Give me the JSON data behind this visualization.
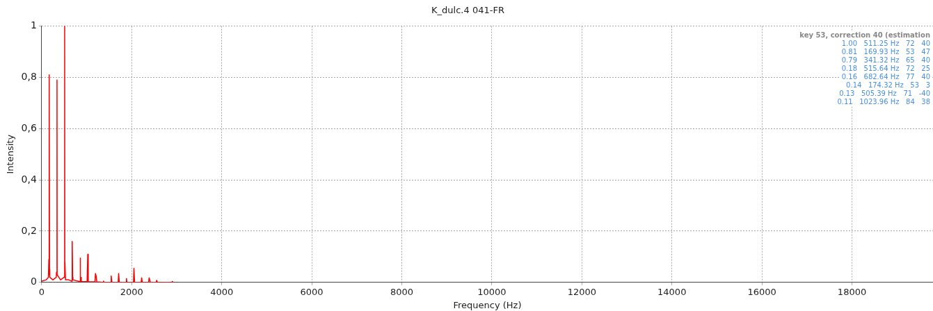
{
  "chart_data": {
    "type": "line",
    "title": "K_dulc.4 041-FR",
    "xlabel": "Frequency (Hz)",
    "ylabel": "Intensity",
    "xlim": [
      0,
      19800
    ],
    "xticks": [
      0,
      2000,
      4000,
      6000,
      8000,
      10000,
      12000,
      14000,
      16000,
      18000
    ],
    "ylim": [
      0,
      1
    ],
    "yticks": [
      {
        "value": 0,
        "label": "0"
      },
      {
        "value": 0.2,
        "label": "0,2"
      },
      {
        "value": 0.4,
        "label": "0,4"
      },
      {
        "value": 0.6,
        "label": "0,6"
      },
      {
        "value": 0.8,
        "label": "0,8"
      },
      {
        "value": 1,
        "label": "1"
      }
    ],
    "grid": true,
    "legend": false,
    "marker": "none",
    "line_style": "solid",
    "series": [
      {
        "color": "#ff0000",
        "x": [
          0,
          100,
          150,
          160,
          165,
          170,
          175,
          180,
          250,
          325,
          330,
          341,
          344,
          350,
          420,
          500,
          511,
          514,
          516,
          530,
          600,
          670,
          675,
          682,
          689,
          695,
          850,
          853,
          858,
          863,
          868,
          880,
          1010,
          1024,
          1035,
          1185,
          1195,
          1210,
          1225,
          1365,
          1374,
          1385,
          1535,
          1545,
          1560,
          1700,
          1710,
          1725,
          1875,
          1884,
          1895,
          2040,
          2050,
          2065,
          2210,
          2222,
          2235,
          2375,
          2388,
          2400,
          2415,
          2545,
          2555,
          2570,
          2890,
          2903,
          2920
        ],
        "values": [
          0.005,
          0.01,
          0.02,
          0.09,
          0.03,
          0.81,
          0.05,
          0.02,
          0.01,
          0.02,
          0.04,
          0.79,
          0.03,
          0.03,
          0.01,
          0.02,
          1.0,
          0.02,
          0.08,
          0.01,
          0.01,
          0.005,
          0.02,
          0.16,
          0.02,
          0.01,
          0.003,
          0.005,
          0.095,
          0.005,
          0.02,
          0.003,
          0.003,
          0.11,
          0.003,
          0.002,
          0.035,
          0.025,
          0.002,
          0,
          0.005,
          0,
          0,
          0.025,
          0,
          0,
          0.035,
          0,
          0,
          0.015,
          0,
          0,
          0.055,
          0,
          0,
          0.018,
          0,
          0,
          0.018,
          0.01,
          0,
          0,
          0.008,
          0,
          0,
          0.004,
          0
        ]
      }
    ],
    "annotations": [
      "key 53, correction 40 (estimation",
      "1.00   511.25 Hz   72   40",
      "0.81   169.93 Hz   53   47",
      "0.79   341.32 Hz   65   40",
      "0.18   515.64 Hz   72   25",
      "0.16   682.64 Hz   77   40",
      "0.14   174.32 Hz   53   3",
      "0.13   505.39 Hz   71   -40",
      "0.11   1023.96 Hz   84   38"
    ]
  }
}
